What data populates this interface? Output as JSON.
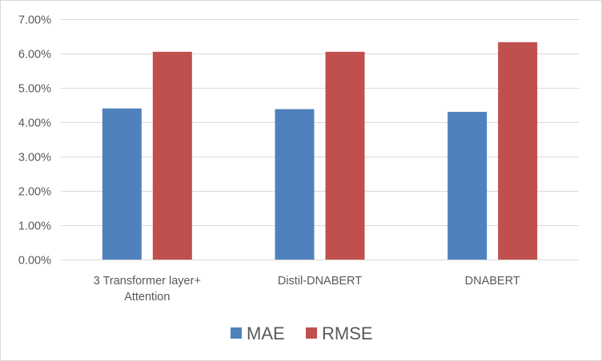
{
  "chart_data": {
    "type": "bar",
    "categories": [
      [
        "3 Transformer layer+",
        "Attention"
      ],
      [
        "Distil-DNABERT"
      ],
      [
        "DNABERT"
      ]
    ],
    "series": [
      {
        "name": "MAE",
        "color": "#4f81bd",
        "values": [
          4.4,
          4.38,
          4.3
        ]
      },
      {
        "name": "RMSE",
        "color": "#c0504d",
        "values": [
          6.05,
          6.05,
          6.33
        ]
      }
    ],
    "y_ticks": [
      "0.00%",
      "1.00%",
      "2.00%",
      "3.00%",
      "4.00%",
      "5.00%",
      "6.00%",
      "7.00%"
    ],
    "ylim": [
      0,
      7
    ],
    "grid": true,
    "legend_position": "bottom",
    "gridline_color": "#d9d9d9",
    "title": "",
    "xlabel": "",
    "ylabel": ""
  }
}
